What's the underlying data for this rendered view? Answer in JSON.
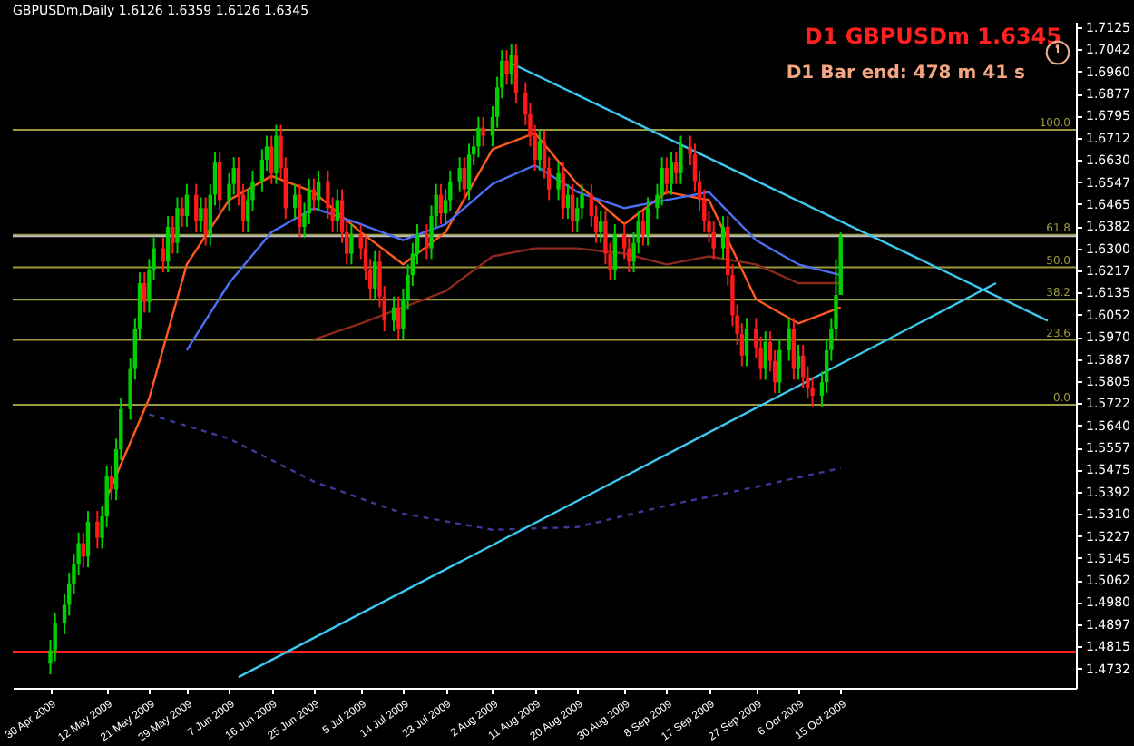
{
  "chart_data": {
    "type": "candlestick",
    "title": "GBPUSDm,Daily 1.6126 1.6359 1.6126 1.6345",
    "annotations": [
      "D1 GBPUSDm 1.6345",
      "D1 Bar end: 478 m 41 s",
      {
        "text": "100.0",
        "x": "2009-12-04",
        "y": 1.6742
      },
      {
        "text": "61.8",
        "x": "2009-12-04",
        "y": 1.635
      },
      {
        "text": "50.0",
        "x": "2009-12-04",
        "y": 1.6229
      },
      {
        "text": "38.2",
        "x": "2009-12-04",
        "y": 1.6108
      },
      {
        "text": "23.6",
        "x": "2009-12-04",
        "y": 1.5958
      },
      {
        "text": "0.0",
        "x": "2009-12-04",
        "y": 1.5716
      }
    ],
    "x": [
      "2009-04-30",
      "2009-05-01",
      "2009-05-03",
      "2009-05-04",
      "2009-05-05",
      "2009-05-06",
      "2009-05-07",
      "2009-05-08",
      "2009-05-10",
      "2009-05-11",
      "2009-05-12",
      "2009-05-13",
      "2009-05-14",
      "2009-05-15",
      "2009-05-17",
      "2009-05-18",
      "2009-05-19",
      "2009-05-20",
      "2009-05-21",
      "2009-05-22",
      "2009-05-24",
      "2009-05-25",
      "2009-05-26",
      "2009-05-27",
      "2009-05-28",
      "2009-05-29",
      "2009-05-31",
      "2009-06-01",
      "2009-06-02",
      "2009-06-03",
      "2009-06-04",
      "2009-06-05",
      "2009-06-07",
      "2009-06-08",
      "2009-06-09",
      "2009-06-10",
      "2009-06-11",
      "2009-06-12",
      "2009-06-14",
      "2009-06-15",
      "2009-06-16",
      "2009-06-17",
      "2009-06-18",
      "2009-06-19",
      "2009-06-21",
      "2009-06-22",
      "2009-06-23",
      "2009-06-24",
      "2009-06-25",
      "2009-06-26",
      "2009-06-28",
      "2009-06-29",
      "2009-06-30",
      "2009-07-01",
      "2009-07-02",
      "2009-07-03",
      "2009-07-05",
      "2009-07-06",
      "2009-07-07",
      "2009-07-08",
      "2009-07-09",
      "2009-07-10",
      "2009-07-12",
      "2009-07-13",
      "2009-07-14",
      "2009-07-15",
      "2009-07-16",
      "2009-07-17",
      "2009-07-19",
      "2009-07-20",
      "2009-07-21",
      "2009-07-22",
      "2009-07-23",
      "2009-07-24",
      "2009-07-26",
      "2009-07-27",
      "2009-07-28",
      "2009-07-29",
      "2009-07-30",
      "2009-07-31",
      "2009-08-02",
      "2009-08-03",
      "2009-08-04",
      "2009-08-05",
      "2009-08-06",
      "2009-08-07",
      "2009-08-09",
      "2009-08-10",
      "2009-08-11",
      "2009-08-12",
      "2009-08-13",
      "2009-08-14",
      "2009-08-16",
      "2009-08-17",
      "2009-08-18",
      "2009-08-19",
      "2009-08-20",
      "2009-08-21",
      "2009-08-23",
      "2009-08-24",
      "2009-08-25",
      "2009-08-26",
      "2009-08-27",
      "2009-08-28",
      "2009-08-30",
      "2009-08-31",
      "2009-09-01",
      "2009-09-02",
      "2009-09-03",
      "2009-09-04",
      "2009-09-06",
      "2009-09-07",
      "2009-09-08",
      "2009-09-09",
      "2009-09-10",
      "2009-09-11",
      "2009-09-13",
      "2009-09-14",
      "2009-09-15",
      "2009-09-16",
      "2009-09-17",
      "2009-09-18",
      "2009-09-20",
      "2009-09-21",
      "2009-09-22",
      "2009-09-23",
      "2009-09-24",
      "2009-09-25",
      "2009-09-27",
      "2009-09-28",
      "2009-09-29",
      "2009-09-30",
      "2009-10-01",
      "2009-10-02",
      "2009-10-04",
      "2009-10-05",
      "2009-10-06",
      "2009-10-07",
      "2009-10-08",
      "2009-10-09",
      "2009-10-11",
      "2009-10-12",
      "2009-10-13",
      "2009-10-14",
      "2009-10-15"
    ],
    "ohlc": [
      [
        1.475,
        1.484,
        1.471,
        1.48
      ],
      [
        1.48,
        1.494,
        1.476,
        1.49
      ],
      [
        1.49,
        1.501,
        1.486,
        1.497
      ],
      [
        1.497,
        1.509,
        1.493,
        1.505
      ],
      [
        1.505,
        1.516,
        1.501,
        1.512
      ],
      [
        1.512,
        1.524,
        1.508,
        1.52
      ],
      [
        1.52,
        1.524,
        1.511,
        1.515
      ],
      [
        1.515,
        1.532,
        1.511,
        1.528
      ],
      [
        1.528,
        1.532,
        1.518,
        1.522
      ],
      [
        1.522,
        1.534,
        1.518,
        1.53
      ],
      [
        1.53,
        1.549,
        1.526,
        1.545
      ],
      [
        1.545,
        1.549,
        1.536,
        1.54
      ],
      [
        1.54,
        1.559,
        1.536,
        1.555
      ],
      [
        1.555,
        1.574,
        1.551,
        1.57
      ],
      [
        1.57,
        1.589,
        1.566,
        1.585
      ],
      [
        1.585,
        1.604,
        1.581,
        1.6
      ],
      [
        1.6,
        1.621,
        1.596,
        1.617
      ],
      [
        1.617,
        1.621,
        1.606,
        1.61
      ],
      [
        1.61,
        1.626,
        1.606,
        1.622
      ],
      [
        1.622,
        1.634,
        1.618,
        1.63
      ],
      [
        1.63,
        1.634,
        1.621,
        1.625
      ],
      [
        1.625,
        1.642,
        1.621,
        1.638
      ],
      [
        1.638,
        1.642,
        1.628,
        1.632
      ],
      [
        1.632,
        1.649,
        1.628,
        1.645
      ],
      [
        1.645,
        1.649,
        1.638,
        1.642
      ],
      [
        1.642,
        1.654,
        1.638,
        1.65
      ],
      [
        1.65,
        1.654,
        1.636,
        1.64
      ],
      [
        1.64,
        1.649,
        1.636,
        1.645
      ],
      [
        1.645,
        1.649,
        1.631,
        1.635
      ],
      [
        1.635,
        1.654,
        1.631,
        1.65
      ],
      [
        1.65,
        1.666,
        1.646,
        1.662
      ],
      [
        1.662,
        1.666,
        1.644,
        1.648
      ],
      [
        1.648,
        1.658,
        1.644,
        1.654
      ],
      [
        1.654,
        1.664,
        1.65,
        1.66
      ],
      [
        1.66,
        1.664,
        1.646,
        1.65
      ],
      [
        1.65,
        1.654,
        1.636,
        1.64
      ],
      [
        1.64,
        1.652,
        1.636,
        1.648
      ],
      [
        1.648,
        1.659,
        1.644,
        1.655
      ],
      [
        1.655,
        1.667,
        1.651,
        1.663
      ],
      [
        1.663,
        1.672,
        1.659,
        1.668
      ],
      [
        1.668,
        1.672,
        1.654,
        1.658
      ],
      [
        1.658,
        1.676,
        1.654,
        1.672
      ],
      [
        1.672,
        1.676,
        1.656,
        1.66
      ],
      [
        1.66,
        1.664,
        1.641,
        1.645
      ],
      [
        1.645,
        1.654,
        1.641,
        1.65
      ],
      [
        1.65,
        1.654,
        1.634,
        1.638
      ],
      [
        1.638,
        1.647,
        1.634,
        1.643
      ],
      [
        1.643,
        1.656,
        1.639,
        1.652
      ],
      [
        1.652,
        1.656,
        1.644,
        1.648
      ],
      [
        1.648,
        1.659,
        1.644,
        1.655
      ],
      [
        1.655,
        1.659,
        1.641,
        1.645
      ],
      [
        1.645,
        1.649,
        1.636,
        1.64
      ],
      [
        1.64,
        1.652,
        1.636,
        1.648
      ],
      [
        1.648,
        1.652,
        1.632,
        1.636
      ],
      [
        1.636,
        1.64,
        1.624,
        1.628
      ],
      [
        1.628,
        1.639,
        1.624,
        1.635
      ],
      [
        1.635,
        1.639,
        1.626,
        1.63
      ],
      [
        1.63,
        1.634,
        1.618,
        1.622
      ],
      [
        1.622,
        1.626,
        1.611,
        1.615
      ],
      [
        1.615,
        1.629,
        1.611,
        1.625
      ],
      [
        1.625,
        1.629,
        1.608,
        1.612
      ],
      [
        1.612,
        1.616,
        1.599,
        1.603
      ],
      [
        1.603,
        1.612,
        1.599,
        1.608
      ],
      [
        1.608,
        1.612,
        1.596,
        1.6
      ],
      [
        1.6,
        1.615,
        1.596,
        1.611
      ],
      [
        1.611,
        1.624,
        1.607,
        1.62
      ],
      [
        1.62,
        1.632,
        1.616,
        1.628
      ],
      [
        1.628,
        1.639,
        1.624,
        1.635
      ],
      [
        1.635,
        1.639,
        1.626,
        1.63
      ],
      [
        1.63,
        1.646,
        1.626,
        1.642
      ],
      [
        1.642,
        1.654,
        1.638,
        1.65
      ],
      [
        1.65,
        1.654,
        1.639,
        1.643
      ],
      [
        1.643,
        1.652,
        1.639,
        1.648
      ],
      [
        1.648,
        1.659,
        1.644,
        1.655
      ],
      [
        1.655,
        1.664,
        1.651,
        1.66
      ],
      [
        1.66,
        1.664,
        1.648,
        1.652
      ],
      [
        1.652,
        1.669,
        1.648,
        1.665
      ],
      [
        1.665,
        1.672,
        1.661,
        1.668
      ],
      [
        1.668,
        1.679,
        1.664,
        1.675
      ],
      [
        1.675,
        1.679,
        1.668,
        1.672
      ],
      [
        1.672,
        1.683,
        1.668,
        1.679
      ],
      [
        1.679,
        1.694,
        1.675,
        1.69
      ],
      [
        1.69,
        1.704,
        1.686,
        1.7
      ],
      [
        1.7,
        1.704,
        1.691,
        1.695
      ],
      [
        1.695,
        1.706,
        1.691,
        1.702
      ],
      [
        1.702,
        1.706,
        1.684,
        1.688
      ],
      [
        1.688,
        1.692,
        1.676,
        1.68
      ],
      [
        1.68,
        1.684,
        1.668,
        1.672
      ],
      [
        1.672,
        1.676,
        1.659,
        1.663
      ],
      [
        1.663,
        1.674,
        1.659,
        1.67
      ],
      [
        1.67,
        1.674,
        1.656,
        1.66
      ],
      [
        1.66,
        1.664,
        1.648,
        1.652
      ],
      [
        1.652,
        1.662,
        1.648,
        1.658
      ],
      [
        1.658,
        1.662,
        1.641,
        1.645
      ],
      [
        1.645,
        1.654,
        1.641,
        1.65
      ],
      [
        1.65,
        1.654,
        1.636,
        1.64
      ],
      [
        1.64,
        1.649,
        1.636,
        1.645
      ],
      [
        1.645,
        1.654,
        1.641,
        1.65
      ],
      [
        1.65,
        1.654,
        1.638,
        1.642
      ],
      [
        1.642,
        1.646,
        1.632,
        1.636
      ],
      [
        1.636,
        1.644,
        1.632,
        1.64
      ],
      [
        1.64,
        1.644,
        1.624,
        1.628
      ],
      [
        1.628,
        1.632,
        1.618,
        1.622
      ],
      [
        1.622,
        1.639,
        1.618,
        1.635
      ],
      [
        1.635,
        1.639,
        1.626,
        1.63
      ],
      [
        1.63,
        1.634,
        1.621,
        1.625
      ],
      [
        1.625,
        1.636,
        1.621,
        1.632
      ],
      [
        1.632,
        1.644,
        1.628,
        1.64
      ],
      [
        1.64,
        1.644,
        1.631,
        1.635
      ],
      [
        1.635,
        1.649,
        1.631,
        1.645
      ],
      [
        1.645,
        1.654,
        1.641,
        1.65
      ],
      [
        1.65,
        1.664,
        1.646,
        1.66
      ],
      [
        1.66,
        1.664,
        1.65,
        1.654
      ],
      [
        1.654,
        1.666,
        1.65,
        1.662
      ],
      [
        1.662,
        1.666,
        1.654,
        1.658
      ],
      [
        1.658,
        1.672,
        1.654,
        1.668
      ],
      [
        1.668,
        1.672,
        1.661,
        1.665
      ],
      [
        1.665,
        1.669,
        1.651,
        1.655
      ],
      [
        1.655,
        1.659,
        1.644,
        1.648
      ],
      [
        1.648,
        1.652,
        1.636,
        1.64
      ],
      [
        1.64,
        1.644,
        1.632,
        1.636
      ],
      [
        1.636,
        1.64,
        1.626,
        1.63
      ],
      [
        1.63,
        1.642,
        1.626,
        1.638
      ],
      [
        1.638,
        1.642,
        1.616,
        1.62
      ],
      [
        1.62,
        1.624,
        1.601,
        1.605
      ],
      [
        1.605,
        1.609,
        1.594,
        1.598
      ],
      [
        1.598,
        1.602,
        1.586,
        1.59
      ],
      [
        1.59,
        1.604,
        1.586,
        1.6
      ],
      [
        1.6,
        1.604,
        1.589,
        1.593
      ],
      [
        1.593,
        1.597,
        1.581,
        1.585
      ],
      [
        1.585,
        1.599,
        1.581,
        1.595
      ],
      [
        1.595,
        1.599,
        1.584,
        1.588
      ],
      [
        1.588,
        1.592,
        1.576,
        1.58
      ],
      [
        1.58,
        1.596,
        1.576,
        1.592
      ],
      [
        1.592,
        1.604,
        1.588,
        1.6
      ],
      [
        1.6,
        1.604,
        1.581,
        1.585
      ],
      [
        1.585,
        1.594,
        1.581,
        1.59
      ],
      [
        1.59,
        1.594,
        1.578,
        1.582
      ],
      [
        1.582,
        1.586,
        1.574,
        1.578
      ],
      [
        1.578,
        1.582,
        1.571,
        1.575
      ],
      [
        1.575,
        1.584,
        1.571,
        1.58
      ],
      [
        1.58,
        1.596,
        1.576,
        1.592
      ],
      [
        1.592,
        1.604,
        1.588,
        1.6
      ],
      [
        1.6,
        1.626,
        1.596,
        1.6126
      ],
      [
        1.6126,
        1.6359,
        1.6126,
        1.6345
      ]
    ],
    "series": [
      {
        "type": "line",
        "color": "#ff5a1e",
        "x": [
          "2009-05-12",
          "2009-05-21",
          "2009-05-29",
          "2009-06-07",
          "2009-06-16",
          "2009-06-25",
          "2009-07-05",
          "2009-07-14",
          "2009-07-23",
          "2009-08-02",
          "2009-08-11",
          "2009-08-20",
          "2009-08-30",
          "2009-09-08",
          "2009-09-17",
          "2009-09-27",
          "2009-10-06",
          "2009-10-15"
        ],
        "values": [
          1.537,
          1.574,
          1.624,
          1.648,
          1.657,
          1.651,
          1.636,
          1.624,
          1.636,
          1.667,
          1.673,
          1.654,
          1.639,
          1.651,
          1.648,
          1.611,
          1.602,
          1.608
        ]
      },
      {
        "type": "line",
        "color": "#4c6ef5",
        "x": [
          "2009-05-29",
          "2009-06-07",
          "2009-06-16",
          "2009-06-25",
          "2009-07-05",
          "2009-07-14",
          "2009-07-23",
          "2009-08-02",
          "2009-08-11",
          "2009-08-20",
          "2009-08-30",
          "2009-09-08",
          "2009-09-17",
          "2009-09-27",
          "2009-10-06",
          "2009-10-15"
        ],
        "values": [
          1.592,
          1.617,
          1.636,
          1.645,
          1.639,
          1.633,
          1.639,
          1.654,
          1.661,
          1.651,
          1.645,
          1.648,
          1.651,
          1.633,
          1.624,
          1.62
        ]
      },
      {
        "type": "line",
        "color": "#8b2a1a",
        "x": [
          "2009-06-25",
          "2009-07-05",
          "2009-07-14",
          "2009-07-23",
          "2009-08-02",
          "2009-08-11",
          "2009-08-20",
          "2009-08-30",
          "2009-09-08",
          "2009-09-17",
          "2009-09-27",
          "2009-10-06",
          "2009-10-15"
        ],
        "values": [
          1.596,
          1.602,
          1.608,
          1.614,
          1.627,
          1.63,
          1.63,
          1.628,
          1.624,
          1.627,
          1.624,
          1.617,
          1.617
        ]
      },
      {
        "type": "line",
        "color": "#3a3a9a",
        "line_style": "dashed",
        "x": [
          "2009-05-21",
          "2009-06-07",
          "2009-06-25",
          "2009-07-14",
          "2009-08-02",
          "2009-08-20",
          "2009-09-08",
          "2009-09-27",
          "2009-10-15"
        ],
        "values": [
          1.568,
          1.559,
          1.543,
          1.531,
          1.525,
          1.526,
          1.534,
          1.541,
          1.548
        ]
      },
      {
        "type": "line",
        "color": "#3cc8f0",
        "x": [
          "2009-08-06",
          "2009-11-28"
        ],
        "values": [
          1.699,
          1.603
        ]
      },
      {
        "type": "line",
        "color": "#3cc8f0",
        "x": [
          "2009-06-09",
          "2009-11-17"
        ],
        "values": [
          1.47,
          1.617
        ]
      }
    ],
    "ref_lines": [
      {
        "axis": "y",
        "value": 1.6742,
        "color": "#9a9a3c"
      },
      {
        "axis": "y",
        "value": 1.635,
        "color": "#9a9a3c"
      },
      {
        "axis": "y",
        "value": 1.6229,
        "color": "#9a9a3c"
      },
      {
        "axis": "y",
        "value": 1.6108,
        "color": "#9a9a3c"
      },
      {
        "axis": "y",
        "value": 1.5958,
        "color": "#9a9a3c"
      },
      {
        "axis": "y",
        "value": 1.5716,
        "color": "#9a9a3c"
      },
      {
        "axis": "y",
        "value": 1.6345,
        "color": "#c0c0c0"
      },
      {
        "axis": "y",
        "value": 1.4795,
        "color": "#ff2020"
      }
    ],
    "xlim": [
      "2009-04-22",
      "2009-12-04"
    ],
    "xticks": [
      {
        "value": "2009-04-30",
        "label": "30 Apr 2009"
      },
      {
        "value": "2009-05-12",
        "label": "12 May 2009"
      },
      {
        "value": "2009-05-21",
        "label": "21 May 2009"
      },
      {
        "value": "2009-05-29",
        "label": "29 May 2009"
      },
      {
        "value": "2009-06-07",
        "label": "7 Jun 2009"
      },
      {
        "value": "2009-06-16",
        "label": "16 Jun 2009"
      },
      {
        "value": "2009-06-25",
        "label": "25 Jun 2009"
      },
      {
        "value": "2009-07-05",
        "label": "5 Jul 2009"
      },
      {
        "value": "2009-07-14",
        "label": "14 Jul 2009"
      },
      {
        "value": "2009-07-23",
        "label": "23 Jul 2009"
      },
      {
        "value": "2009-08-02",
        "label": "2 Aug 2009"
      },
      {
        "value": "2009-08-11",
        "label": "11 Aug 2009"
      },
      {
        "value": "2009-08-20",
        "label": "20 Aug 2009"
      },
      {
        "value": "2009-08-30",
        "label": "30 Aug 2009"
      },
      {
        "value": "2009-09-08",
        "label": "8 Sep 2009"
      },
      {
        "value": "2009-09-17",
        "label": "17 Sep 2009"
      },
      {
        "value": "2009-09-27",
        "label": "27 Sep 2009"
      },
      {
        "value": "2009-10-06",
        "label": "6 Oct 2009"
      },
      {
        "value": "2009-10-15",
        "label": "15 Oct 2009"
      }
    ],
    "ylim": [
      1.466,
      1.7145
    ],
    "yticks": [
      1.7125,
      1.7042,
      {
        "value": 1.696,
        "label": "1.6960"
      },
      1.6877,
      1.6795,
      1.6712,
      {
        "value": 1.663,
        "label": "1.6630"
      },
      1.6547,
      1.6465,
      1.6382,
      {
        "value": 1.63,
        "label": "1.6300"
      },
      1.6217,
      1.6135,
      1.6052,
      {
        "value": 1.597,
        "label": "1.5970"
      },
      1.5887,
      1.5805,
      1.5722,
      {
        "value": 1.564,
        "label": "1.5640"
      },
      1.5557,
      1.5475,
      1.5392,
      {
        "value": 1.531,
        "label": "1.5310"
      },
      1.5227,
      1.5145,
      1.5062,
      {
        "value": 1.498,
        "label": "1.4980"
      },
      1.4897,
      1.4815,
      1.4732
    ]
  }
}
